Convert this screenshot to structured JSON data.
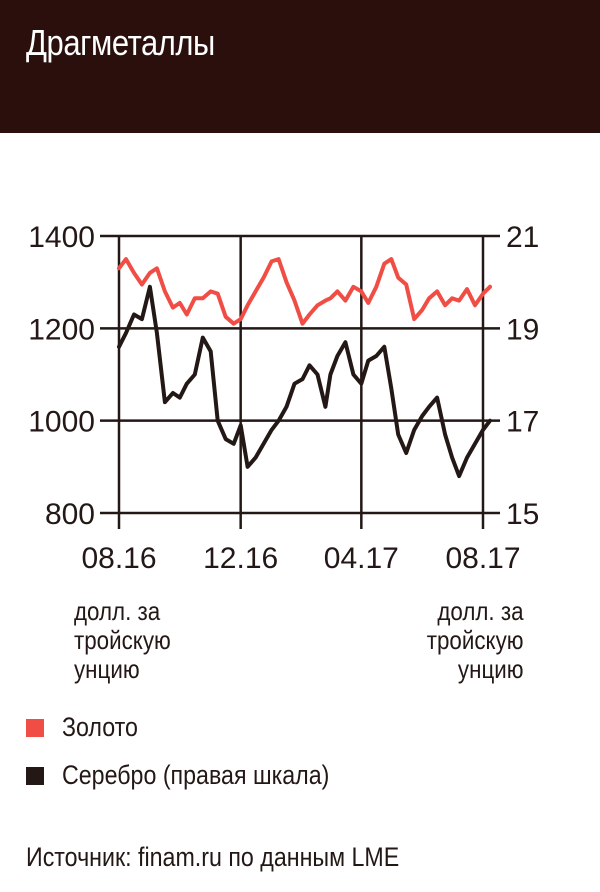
{
  "title": "Драгметаллы",
  "chart_data": {
    "type": "line",
    "title": "Драгметаллы",
    "x_ticks": [
      "08.16",
      "12.16",
      "04.17",
      "08.17"
    ],
    "x_range": [
      "2016-08",
      "2017-08"
    ],
    "left_axis": {
      "label": "долл. за тройскую унцию",
      "ticks": [
        1400,
        1200,
        1000,
        800
      ],
      "range": [
        800,
        1400
      ]
    },
    "right_axis": {
      "label": "долл. за тройскую унцию",
      "ticks": [
        21,
        19,
        17,
        15
      ],
      "range": [
        15,
        21
      ]
    },
    "grid": true,
    "series": [
      {
        "name": "Золото",
        "axis": "left",
        "color": "#f04e45",
        "x": [
          "2016-08-01",
          "2016-08-08",
          "2016-08-16",
          "2016-08-24",
          "2016-09-01",
          "2016-09-08",
          "2016-09-16",
          "2016-09-24",
          "2016-10-01",
          "2016-10-08",
          "2016-10-16",
          "2016-10-24",
          "2016-11-01",
          "2016-11-08",
          "2016-11-16",
          "2016-11-24",
          "2016-12-01",
          "2016-12-08",
          "2016-12-16",
          "2016-12-24",
          "2017-01-01",
          "2017-01-08",
          "2017-01-16",
          "2017-01-24",
          "2017-02-01",
          "2017-02-08",
          "2017-02-16",
          "2017-02-24",
          "2017-03-01",
          "2017-03-08",
          "2017-03-16",
          "2017-03-24",
          "2017-04-01",
          "2017-04-08",
          "2017-04-16",
          "2017-04-24",
          "2017-05-01",
          "2017-05-08",
          "2017-05-16",
          "2017-05-24",
          "2017-06-01",
          "2017-06-08",
          "2017-06-16",
          "2017-06-24",
          "2017-07-01",
          "2017-07-08",
          "2017-07-16",
          "2017-07-24",
          "2017-08-01",
          "2017-08-08"
        ],
        "values": [
          1330,
          1350,
          1320,
          1295,
          1320,
          1330,
          1280,
          1245,
          1255,
          1230,
          1265,
          1265,
          1280,
          1275,
          1225,
          1210,
          1220,
          1250,
          1280,
          1310,
          1345,
          1350,
          1300,
          1260,
          1210,
          1230,
          1250,
          1260,
          1265,
          1280,
          1260,
          1290,
          1280,
          1255,
          1290,
          1340,
          1350,
          1310,
          1295,
          1220,
          1240,
          1265,
          1280,
          1250,
          1265,
          1260,
          1285,
          1250,
          1275,
          1290
        ]
      },
      {
        "name": "Серебро (правая шкала)",
        "axis": "right",
        "color": "#231815",
        "x": [
          "2016-08-01",
          "2016-08-08",
          "2016-08-16",
          "2016-08-24",
          "2016-09-01",
          "2016-09-08",
          "2016-09-16",
          "2016-09-24",
          "2016-10-01",
          "2016-10-08",
          "2016-10-16",
          "2016-10-24",
          "2016-11-01",
          "2016-11-08",
          "2016-11-16",
          "2016-11-24",
          "2016-12-01",
          "2016-12-08",
          "2016-12-16",
          "2016-12-24",
          "2017-01-01",
          "2017-01-08",
          "2017-01-16",
          "2017-01-24",
          "2017-02-01",
          "2017-02-08",
          "2017-02-16",
          "2017-02-24",
          "2017-03-01",
          "2017-03-08",
          "2017-03-16",
          "2017-03-24",
          "2017-04-01",
          "2017-04-08",
          "2017-04-16",
          "2017-04-24",
          "2017-05-01",
          "2017-05-08",
          "2017-05-16",
          "2017-05-24",
          "2017-06-01",
          "2017-06-08",
          "2017-06-16",
          "2017-06-24",
          "2017-07-01",
          "2017-07-08",
          "2017-07-16",
          "2017-07-24",
          "2017-08-01",
          "2017-08-08"
        ],
        "values": [
          18.6,
          18.9,
          19.3,
          19.2,
          19.9,
          18.9,
          17.4,
          17.6,
          17.5,
          17.8,
          18.0,
          18.8,
          18.5,
          17.0,
          16.6,
          16.5,
          16.9,
          16.0,
          16.2,
          16.5,
          16.8,
          17.0,
          17.3,
          17.8,
          17.9,
          18.2,
          18.0,
          17.3,
          18.0,
          18.4,
          18.7,
          18.0,
          17.8,
          18.3,
          18.4,
          18.6,
          17.7,
          16.7,
          16.3,
          16.8,
          17.1,
          17.3,
          17.5,
          16.7,
          16.2,
          15.8,
          16.2,
          16.5,
          16.8,
          17.0
        ]
      }
    ]
  },
  "legend": [
    {
      "label": "Золото",
      "color": "#f04e45"
    },
    {
      "label": "Серебро (правая шкала)",
      "color": "#231815"
    }
  ],
  "units": {
    "left": "долл. за тройскую унцию",
    "right": "долл. за тройскую унцию"
  },
  "source": "Источник: finam.ru по данным LME"
}
